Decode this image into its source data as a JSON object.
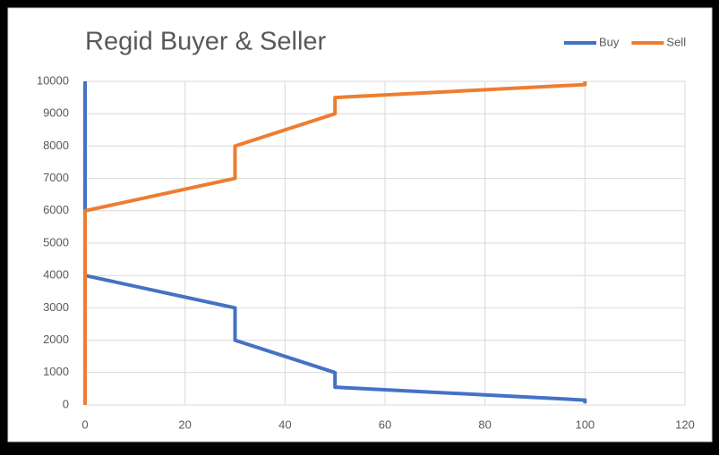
{
  "chart_data": {
    "type": "line",
    "title": "Regid Buyer & Seller",
    "series": [
      {
        "name": "Buy",
        "color": "#4472c4",
        "x": [
          0,
          0,
          30,
          30,
          50,
          50,
          100,
          100
        ],
        "values": [
          10000,
          4000,
          3000,
          2000,
          1000,
          550,
          150,
          50
        ]
      },
      {
        "name": "Sell",
        "color": "#ed7d31",
        "x": [
          0,
          0,
          30,
          30,
          50,
          50,
          100,
          100
        ],
        "values": [
          0,
          6000,
          7000,
          8000,
          9000,
          9500,
          9900,
          10000
        ]
      }
    ],
    "xlim": [
      0,
      120
    ],
    "xticks": [
      0,
      20,
      40,
      60,
      80,
      100,
      120
    ],
    "ylim": [
      0,
      10000
    ],
    "yticks": [
      0,
      1000,
      2000,
      3000,
      4000,
      5000,
      6000,
      7000,
      8000,
      9000,
      10000
    ],
    "grid": true,
    "legend": "top-right"
  }
}
